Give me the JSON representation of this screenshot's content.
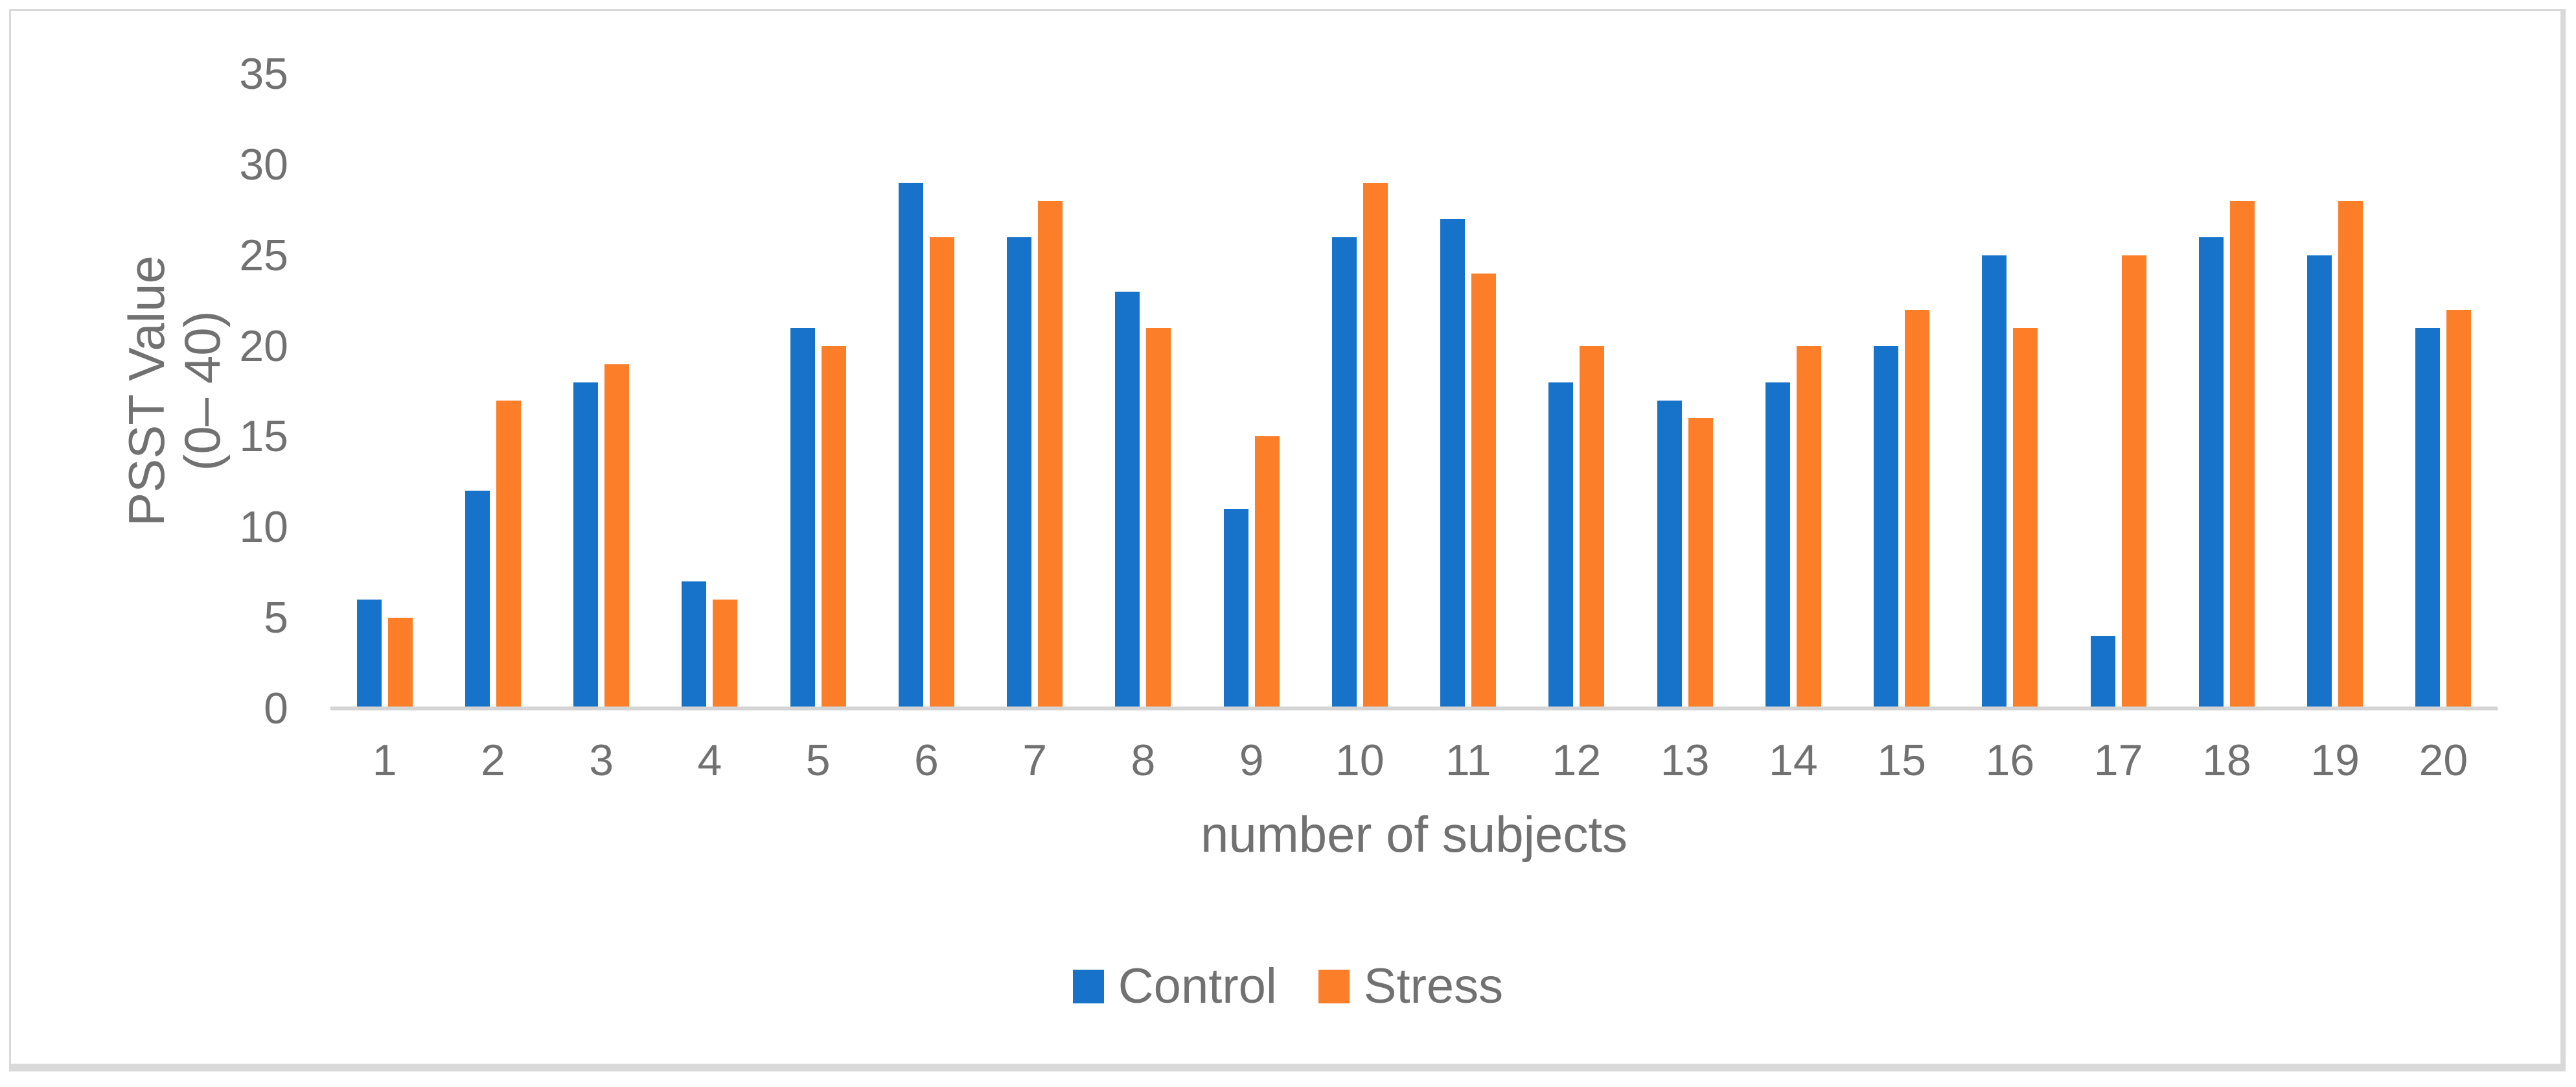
{
  "figure": {
    "background_color": "#FFFFFF",
    "frame_color": "#D9D9D9",
    "text_color": "#717171",
    "gridline_color": "#DCDCDC",
    "baseline_color": "#D4D4D4"
  },
  "chart_data": {
    "type": "bar",
    "title": "",
    "categories": [
      "1",
      "2",
      "3",
      "4",
      "5",
      "6",
      "7",
      "8",
      "9",
      "10",
      "11",
      "12",
      "13",
      "14",
      "15",
      "16",
      "17",
      "18",
      "19",
      "20"
    ],
    "series": [
      {
        "name": "Control",
        "color": "#1772CA",
        "values": [
          6,
          12,
          18,
          7,
          21,
          29,
          26,
          23,
          11,
          26,
          27,
          18,
          17,
          18,
          20,
          25,
          4,
          26,
          25,
          21
        ]
      },
      {
        "name": "Stress",
        "color": "#FD7E28",
        "values": [
          5,
          17,
          19,
          6,
          20,
          26,
          28,
          21,
          15,
          29,
          24,
          20,
          16,
          20,
          22,
          21,
          25,
          28,
          28,
          22
        ]
      }
    ],
    "xlabel": "number of subjects",
    "ylabel": "PSST Value (0– 40)",
    "ylabel_lines": [
      "PSST Value",
      "(0– 40)"
    ],
    "ylim": [
      0,
      35
    ],
    "yticks": [
      0,
      5,
      10,
      15,
      20,
      25,
      30,
      35
    ],
    "grid": "horizontal-major",
    "legend_position": "bottom-center"
  }
}
